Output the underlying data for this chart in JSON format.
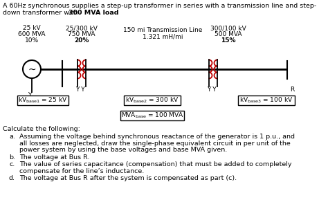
{
  "title_line1": "A 60Hz synchronous supplies a step-up transformer in series with a transmission line and step-",
  "title_line2": "down transformer with 300 ’300 MVA load:",
  "title_bold": "300 MVA load",
  "gen_label1": "25 kV",
  "gen_label2": "600 MVA",
  "gen_label3": "10%",
  "transformer1_label1": "25/300 kV",
  "transformer1_label2": "750 MVA",
  "transformer1_label3": "20%",
  "line_label1": "150 mi Transmission Line",
  "line_label2": "1.321 mH/mi",
  "transformer2_label1": "300/100 kV",
  "transformer2_label2": "500 MVA",
  "transformer2_label3": "15%",
  "bus_Y": "Y",
  "bus_YY1": "Y Y",
  "bus_YY2": "Y Y",
  "bus_R": "R",
  "kvbase1_val": "= 25 kV",
  "kvbase2_val": "= 300 kV",
  "kvbase3_val": "= 100 kV",
  "mvabase_val": "= 100 MVA",
  "calc_title": "Calculate the following:",
  "item_a1": "Assuming the voltage behind synchronous reactance of the generator is 1 p.u., and",
  "item_a2": "all losses are neglected, draw the single-phase equivalent circuit in per unit of the",
  "item_a3": "power system by using the base voltages and base MVA given.",
  "item_b": "The voltage at Bus R.",
  "item_c1": "The value of series capacitance (compensation) that must be added to completely",
  "item_c2": "compensate for the line’s inductance.",
  "item_d": "The voltage at Bus R after the system is compensated as part (c).",
  "bg_color": "#ffffff",
  "text_color": "#000000",
  "circuit_color": "#000000",
  "coil_color": "#c00000",
  "box_color": "#000000",
  "figw": 4.74,
  "figh": 3.15,
  "dpi": 100
}
